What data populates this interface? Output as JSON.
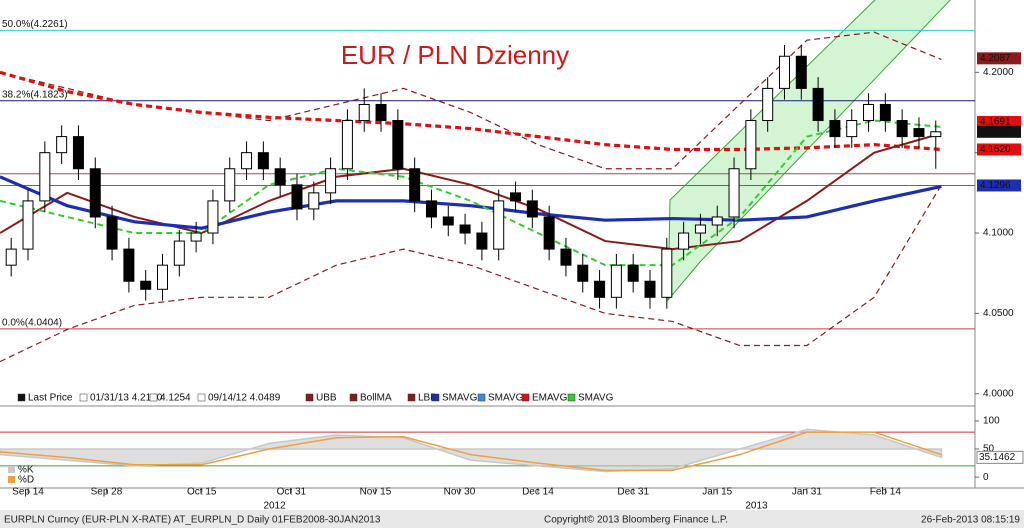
{
  "chart_data": {
    "type": "candlestick",
    "title": "EUR / PLN Dzienny",
    "xlim": [
      8,
      182
    ],
    "xticks": [
      {
        "value": 13,
        "label": "Sep 14"
      },
      {
        "value": 27,
        "label": "Sep 28"
      },
      {
        "value": 44,
        "label": "Oct 15"
      },
      {
        "value": 60,
        "label": "Oct 31"
      },
      {
        "value": 75,
        "label": "Nov 15"
      },
      {
        "value": 90,
        "label": "Nov 30"
      },
      {
        "value": 104,
        "label": "Dec 14"
      },
      {
        "value": 121,
        "label": "Dec 31"
      },
      {
        "value": 136,
        "label": "Jan 15"
      },
      {
        "value": 152,
        "label": "Jan 31"
      },
      {
        "value": 166,
        "label": "Feb 14"
      }
    ],
    "years": [
      {
        "value": 57,
        "label": "2012"
      },
      {
        "value": 143,
        "label": "2013"
      }
    ],
    "ylim": [
      3.993,
      4.245
    ],
    "yticks": [
      {
        "value": 4.0,
        "label": "4.0000"
      },
      {
        "value": 4.05,
        "label": "4.0500"
      },
      {
        "value": 4.1,
        "label": "4.1000"
      },
      {
        "value": 4.15,
        "label": "4.1500"
      },
      {
        "value": 4.2,
        "label": "4.2000"
      }
    ],
    "candles": {
      "x": [
        10,
        13,
        16,
        19,
        22,
        25,
        28,
        31,
        34,
        37,
        40,
        43,
        46,
        49,
        52,
        55,
        58,
        61,
        64,
        67,
        70,
        73,
        76,
        79,
        82,
        85,
        88,
        91,
        94,
        97,
        100,
        103,
        106,
        109,
        112,
        115,
        118,
        121,
        124,
        127,
        130,
        133,
        136,
        139,
        142,
        145,
        148,
        151,
        154,
        157,
        160,
        163,
        166,
        169,
        172,
        175
      ],
      "open": [
        4.08,
        4.09,
        4.12,
        4.15,
        4.16,
        4.14,
        4.11,
        4.09,
        4.07,
        4.065,
        4.08,
        4.095,
        4.1,
        4.12,
        4.14,
        4.15,
        4.14,
        4.13,
        4.115,
        4.125,
        4.14,
        4.17,
        4.18,
        4.17,
        4.14,
        4.12,
        4.11,
        4.105,
        4.1,
        4.09,
        4.125,
        4.12,
        4.11,
        4.09,
        4.08,
        4.07,
        4.06,
        4.08,
        4.07,
        4.06,
        4.09,
        4.1,
        4.105,
        4.11,
        4.14,
        4.17,
        4.19,
        4.21,
        4.19,
        4.17,
        4.16,
        4.17,
        4.18,
        4.17,
        4.165,
        4.16
      ],
      "high": [
        4.097,
        4.127,
        4.157,
        4.167,
        4.167,
        4.147,
        4.117,
        4.097,
        4.077,
        4.087,
        4.102,
        4.107,
        4.127,
        4.147,
        4.157,
        4.157,
        4.147,
        4.137,
        4.132,
        4.147,
        4.177,
        4.19,
        4.187,
        4.177,
        4.147,
        4.127,
        4.117,
        4.112,
        4.107,
        4.127,
        4.132,
        4.127,
        4.117,
        4.097,
        4.087,
        4.077,
        4.087,
        4.087,
        4.077,
        4.097,
        4.107,
        4.112,
        4.117,
        4.147,
        4.177,
        4.197,
        4.217,
        4.217,
        4.197,
        4.177,
        4.177,
        4.187,
        4.187,
        4.177,
        4.172,
        4.17
      ],
      "low": [
        4.073,
        4.083,
        4.113,
        4.143,
        4.133,
        4.103,
        4.083,
        4.063,
        4.058,
        4.058,
        4.073,
        4.088,
        4.093,
        4.113,
        4.133,
        4.133,
        4.123,
        4.108,
        4.108,
        4.118,
        4.133,
        4.163,
        4.163,
        4.133,
        4.113,
        4.103,
        4.098,
        4.093,
        4.083,
        4.083,
        4.113,
        4.103,
        4.083,
        4.073,
        4.063,
        4.053,
        4.053,
        4.063,
        4.053,
        4.053,
        4.083,
        4.093,
        4.098,
        4.103,
        4.133,
        4.163,
        4.183,
        4.183,
        4.163,
        4.153,
        4.153,
        4.163,
        4.163,
        4.153,
        4.153,
        4.14
      ],
      "close": [
        4.09,
        4.12,
        4.15,
        4.16,
        4.14,
        4.11,
        4.09,
        4.07,
        4.065,
        4.08,
        4.095,
        4.1,
        4.12,
        4.14,
        4.15,
        4.14,
        4.13,
        4.115,
        4.125,
        4.14,
        4.17,
        4.18,
        4.17,
        4.14,
        4.12,
        4.11,
        4.105,
        4.1,
        4.09,
        4.12,
        4.12,
        4.11,
        4.09,
        4.08,
        4.07,
        4.06,
        4.08,
        4.07,
        4.06,
        4.09,
        4.1,
        4.105,
        4.11,
        4.14,
        4.17,
        4.19,
        4.21,
        4.19,
        4.17,
        4.16,
        4.17,
        4.18,
        4.17,
        4.16,
        4.16,
        4.163
      ]
    },
    "indicators": {
      "x": [
        8,
        20,
        32,
        44,
        56,
        68,
        80,
        92,
        104,
        116,
        128,
        140,
        152,
        164,
        176
      ],
      "series": [
        {
          "name": "UBB",
          "color": "#8b1a1a",
          "style": "dashed",
          "weight": "thin",
          "values": [
            4.2,
            4.19,
            4.18,
            4.175,
            4.17,
            4.18,
            4.19,
            4.175,
            4.155,
            4.14,
            4.14,
            4.18,
            4.22,
            4.225,
            4.208
          ]
        },
        {
          "name": "LBB",
          "color": "#8b1a1a",
          "style": "dashed",
          "weight": "thin",
          "values": [
            4.02,
            4.04,
            4.055,
            4.06,
            4.06,
            4.08,
            4.09,
            4.08,
            4.065,
            4.05,
            4.045,
            4.03,
            4.03,
            4.06,
            4.13
          ]
        },
        {
          "name": "EMAVG",
          "color": "#e01010",
          "style": "dashed",
          "weight": "thick",
          "values": [
            4.2,
            4.188,
            4.18,
            4.175,
            4.172,
            4.17,
            4.168,
            4.165,
            4.16,
            4.155,
            4.152,
            4.152,
            4.153,
            4.155,
            4.152
          ]
        },
        {
          "name": "BollMA",
          "color": "#8b1a1a",
          "style": "solid",
          "weight": "mid",
          "values": [
            4.1,
            4.125,
            4.11,
            4.1,
            4.12,
            4.135,
            4.14,
            4.13,
            4.115,
            4.095,
            4.09,
            4.095,
            4.12,
            4.15,
            4.162
          ]
        },
        {
          "name": "SMAVG",
          "color": "#1c2fb0",
          "style": "solid",
          "weight": "thick",
          "values": [
            4.135,
            4.117,
            4.107,
            4.103,
            4.113,
            4.12,
            4.12,
            4.117,
            4.112,
            4.108,
            4.109,
            4.108,
            4.11,
            4.12,
            4.129
          ]
        },
        {
          "name": "SMAVG",
          "color": "#33cc33",
          "style": "dashed",
          "weight": "mid",
          "values": [
            4.12,
            4.11,
            4.1,
            4.1,
            4.13,
            4.14,
            4.135,
            4.12,
            4.1,
            4.08,
            4.08,
            4.11,
            4.16,
            4.17,
            4.166
          ]
        }
      ]
    },
    "fib_levels": [
      {
        "label": "50.0%(4.2261)",
        "value": 4.2261,
        "color": "#2fd0d0"
      },
      {
        "label": "38.2%(4.1823)",
        "value": 4.1823,
        "color": "#1a1a6e"
      },
      {
        "value": 4.1369,
        "color": "#a05050"
      },
      {
        "value": 4.1296,
        "color": "#a05050"
      },
      {
        "label": "0.0%(4.0404)",
        "value": 4.0404,
        "color": "#c04040"
      }
    ],
    "last_values": [
      {
        "value": 4.2087,
        "label": "4.2087",
        "color": "#8b1a1a"
      },
      {
        "value": 4.1691,
        "label": "4.1691",
        "color": "#e01010"
      },
      {
        "value": 4.163,
        "label": "4.1630",
        "color": "#111111"
      },
      {
        "value": 4.152,
        "label": "4.1520",
        "color": "#e01010"
      },
      {
        "value": 4.1296,
        "label": "4.1296",
        "color": "#1c2fb0"
      }
    ],
    "legend": [
      {
        "text": "Last Price",
        "color": "#111111"
      },
      {
        "text": "01/31/13 4.2140",
        "color": "#ffffff"
      },
      {
        "text": "4.1254",
        "color": "#ffffff"
      },
      {
        "text": "09/14/12 4.0489",
        "color": "#ffffff"
      },
      {
        "text": "UBB",
        "color": "#8b1a1a"
      },
      {
        "text": "BollMA",
        "color": "#8b1a1a"
      },
      {
        "text": "LBB",
        "color": "#8b1a1a"
      },
      {
        "text": "SMAVG",
        "color": "#1c2fb0"
      },
      {
        "text": "SMAVG",
        "color": "#3a8ee0"
      },
      {
        "text": "EMAVG",
        "color": "#e01010"
      },
      {
        "text": "SMAVG",
        "color": "#33cc33"
      }
    ],
    "oscillator": {
      "ylim": [
        -14,
        123
      ],
      "yticks": [
        0,
        50,
        100
      ],
      "levels": [
        80,
        20
      ],
      "last": {
        "value": 35.1462,
        "label": "35.1462"
      },
      "series": [
        {
          "name": "%K",
          "color": "#c8c8c8",
          "values": [
            40,
            30,
            20,
            25,
            60,
            75,
            70,
            30,
            20,
            10,
            15,
            50,
            85,
            75,
            35
          ]
        },
        {
          "name": "%D",
          "color": "#f0a040",
          "values": [
            45,
            35,
            22,
            22,
            50,
            70,
            72,
            40,
            25,
            12,
            12,
            40,
            80,
            80,
            40
          ]
        }
      ]
    },
    "footer": {
      "left": "EURPLN Curncy (EUR-PLN X-RATE) AT_EURPLN_D  Daily 01FEB2008-30JAN2013",
      "center": "Copyright© 2013 Bloomberg Finance L.P.",
      "right": "26-Feb-2013 08:15:19"
    }
  }
}
